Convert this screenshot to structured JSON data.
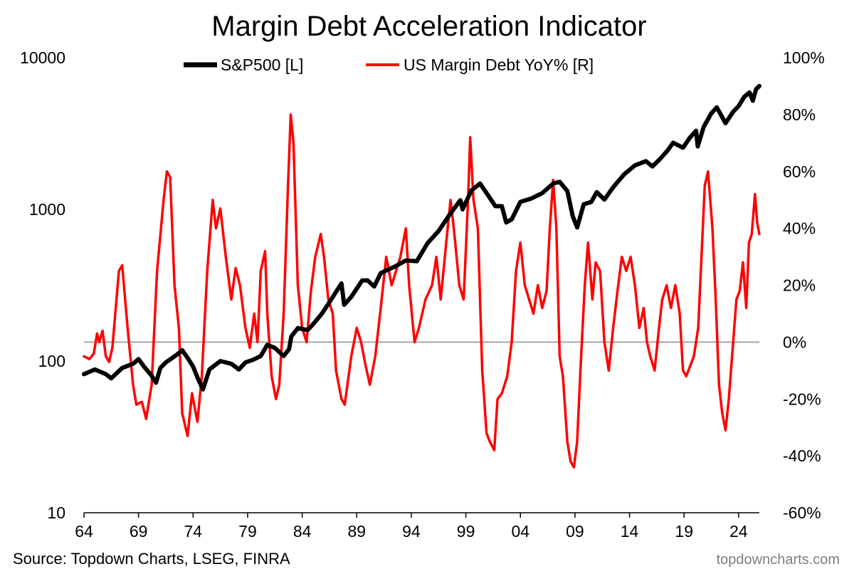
{
  "chart_data": {
    "type": "line",
    "title": "Margin Debt Acceleration Indicator",
    "legend_position": "top-center",
    "grid": false,
    "source": "Source: Topdown Charts, LSEG, FINRA",
    "watermark": "topdowncharts.com",
    "x_range": [
      1964,
      2025.9
    ],
    "x_ticks": [
      {
        "v": 1964,
        "label": "64"
      },
      {
        "v": 1969,
        "label": "69"
      },
      {
        "v": 1974,
        "label": "74"
      },
      {
        "v": 1979,
        "label": "79"
      },
      {
        "v": 1984,
        "label": "84"
      },
      {
        "v": 1989,
        "label": "89"
      },
      {
        "v": 1994,
        "label": "94"
      },
      {
        "v": 1999,
        "label": "99"
      },
      {
        "v": 2004,
        "label": "04"
      },
      {
        "v": 2009,
        "label": "09"
      },
      {
        "v": 2014,
        "label": "14"
      },
      {
        "v": 2019,
        "label": "19"
      },
      {
        "v": 2024,
        "label": "24"
      }
    ],
    "left_axis": {
      "scale": "log",
      "range": [
        10,
        10000
      ],
      "ticks": [
        {
          "v": 10,
          "label": "10"
        },
        {
          "v": 100,
          "label": "100"
        },
        {
          "v": 1000,
          "label": "1000"
        },
        {
          "v": 10000,
          "label": "10000"
        }
      ]
    },
    "right_axis": {
      "scale": "linear",
      "unit": "%",
      "range": [
        -60,
        100
      ],
      "ticks": [
        {
          "v": 100,
          "label": "100%"
        },
        {
          "v": 80,
          "label": "80%"
        },
        {
          "v": 60,
          "label": "60%"
        },
        {
          "v": 40,
          "label": "40%"
        },
        {
          "v": 20,
          "label": "20%"
        },
        {
          "v": 0,
          "label": "0%"
        },
        {
          "v": -20,
          "label": "-20%"
        },
        {
          "v": -40,
          "label": "-40%"
        },
        {
          "v": -60,
          "label": "-60%"
        }
      ]
    },
    "reference_line": {
      "axis": "right",
      "value": 0,
      "color": "#a6a6a6"
    },
    "series": [
      {
        "name": "S&P500 [L]",
        "axis": "left",
        "color": "#000000",
        "points": [
          [
            1964.0,
            82
          ],
          [
            1965.0,
            88
          ],
          [
            1966.0,
            82
          ],
          [
            1966.5,
            77
          ],
          [
            1967.5,
            90
          ],
          [
            1968.5,
            96
          ],
          [
            1969.0,
            103
          ],
          [
            1969.5,
            92
          ],
          [
            1970.2,
            80
          ],
          [
            1970.6,
            72
          ],
          [
            1971.0,
            90
          ],
          [
            1971.5,
            98
          ],
          [
            1972.5,
            110
          ],
          [
            1973.0,
            118
          ],
          [
            1973.5,
            105
          ],
          [
            1974.0,
            92
          ],
          [
            1974.5,
            75
          ],
          [
            1974.9,
            65
          ],
          [
            1975.5,
            88
          ],
          [
            1976.5,
            100
          ],
          [
            1977.5,
            96
          ],
          [
            1978.2,
            88
          ],
          [
            1978.8,
            98
          ],
          [
            1979.5,
            102
          ],
          [
            1980.2,
            108
          ],
          [
            1980.8,
            128
          ],
          [
            1981.5,
            122
          ],
          [
            1982.3,
            108
          ],
          [
            1982.8,
            120
          ],
          [
            1983.0,
            145
          ],
          [
            1983.6,
            165
          ],
          [
            1984.5,
            160
          ],
          [
            1985.0,
            175
          ],
          [
            1985.8,
            205
          ],
          [
            1986.5,
            245
          ],
          [
            1987.6,
            325
          ],
          [
            1987.85,
            235
          ],
          [
            1988.5,
            265
          ],
          [
            1989.5,
            340
          ],
          [
            1990.0,
            340
          ],
          [
            1990.6,
            310
          ],
          [
            1991.2,
            380
          ],
          [
            1992.5,
            420
          ],
          [
            1993.5,
            460
          ],
          [
            1994.5,
            455
          ],
          [
            1995.5,
            600
          ],
          [
            1996.5,
            720
          ],
          [
            1997.5,
            920
          ],
          [
            1998.5,
            1150
          ],
          [
            1998.7,
            1000
          ],
          [
            1999.5,
            1330
          ],
          [
            2000.3,
            1480
          ],
          [
            2001.0,
            1250
          ],
          [
            2001.7,
            1050
          ],
          [
            2002.3,
            1050
          ],
          [
            2002.7,
            820
          ],
          [
            2003.2,
            860
          ],
          [
            2004.0,
            1120
          ],
          [
            2005.0,
            1180
          ],
          [
            2006.0,
            1280
          ],
          [
            2007.0,
            1480
          ],
          [
            2007.6,
            1520
          ],
          [
            2008.3,
            1320
          ],
          [
            2008.8,
            900
          ],
          [
            2009.2,
            760
          ],
          [
            2009.8,
            1080
          ],
          [
            2010.5,
            1120
          ],
          [
            2011.0,
            1300
          ],
          [
            2011.7,
            1160
          ],
          [
            2012.5,
            1400
          ],
          [
            2013.5,
            1700
          ],
          [
            2014.5,
            1950
          ],
          [
            2015.5,
            2080
          ],
          [
            2016.1,
            1920
          ],
          [
            2016.8,
            2150
          ],
          [
            2017.5,
            2450
          ],
          [
            2018.0,
            2750
          ],
          [
            2018.9,
            2550
          ],
          [
            2019.5,
            2950
          ],
          [
            2020.1,
            3300
          ],
          [
            2020.25,
            2600
          ],
          [
            2020.8,
            3500
          ],
          [
            2021.5,
            4300
          ],
          [
            2022.0,
            4700
          ],
          [
            2022.8,
            3700
          ],
          [
            2023.5,
            4400
          ],
          [
            2024.0,
            4800
          ],
          [
            2024.5,
            5500
          ],
          [
            2025.0,
            5900
          ],
          [
            2025.3,
            5200
          ],
          [
            2025.6,
            6200
          ],
          [
            2025.9,
            6500
          ]
        ]
      },
      {
        "name": "US Margin Debt YoY% [R]",
        "axis": "right",
        "color": "#ff0000",
        "points": [
          [
            1964.0,
            -5
          ],
          [
            1964.5,
            -6
          ],
          [
            1964.9,
            -4
          ],
          [
            1965.2,
            3
          ],
          [
            1965.4,
            0
          ],
          [
            1965.7,
            4
          ],
          [
            1966.0,
            -5
          ],
          [
            1966.3,
            -7
          ],
          [
            1966.6,
            -2
          ],
          [
            1967.2,
            25
          ],
          [
            1967.5,
            27
          ],
          [
            1968.0,
            5
          ],
          [
            1968.5,
            -15
          ],
          [
            1968.8,
            -22
          ],
          [
            1969.3,
            -21
          ],
          [
            1969.7,
            -27
          ],
          [
            1970.2,
            -15
          ],
          [
            1970.7,
            25
          ],
          [
            1971.3,
            50
          ],
          [
            1971.6,
            60
          ],
          [
            1971.9,
            58
          ],
          [
            1972.3,
            20
          ],
          [
            1972.7,
            5
          ],
          [
            1973.0,
            -25
          ],
          [
            1973.5,
            -33
          ],
          [
            1973.9,
            -18
          ],
          [
            1974.4,
            -28
          ],
          [
            1974.8,
            -12
          ],
          [
            1975.3,
            25
          ],
          [
            1975.8,
            50
          ],
          [
            1976.1,
            40
          ],
          [
            1976.5,
            47
          ],
          [
            1977.0,
            30
          ],
          [
            1977.5,
            15
          ],
          [
            1977.9,
            26
          ],
          [
            1978.3,
            20
          ],
          [
            1978.8,
            5
          ],
          [
            1979.2,
            -2
          ],
          [
            1979.6,
            10
          ],
          [
            1979.9,
            0
          ],
          [
            1980.2,
            25
          ],
          [
            1980.6,
            32
          ],
          [
            1980.8,
            10
          ],
          [
            1981.2,
            -12
          ],
          [
            1981.6,
            -20
          ],
          [
            1981.9,
            -15
          ],
          [
            1982.3,
            10
          ],
          [
            1982.7,
            55
          ],
          [
            1982.95,
            80
          ],
          [
            1983.2,
            70
          ],
          [
            1983.6,
            20
          ],
          [
            1984.0,
            5
          ],
          [
            1984.4,
            0
          ],
          [
            1984.8,
            18
          ],
          [
            1985.2,
            30
          ],
          [
            1985.7,
            38
          ],
          [
            1986.0,
            30
          ],
          [
            1986.4,
            15
          ],
          [
            1986.8,
            10
          ],
          [
            1987.1,
            -10
          ],
          [
            1987.6,
            -20
          ],
          [
            1987.9,
            -22
          ],
          [
            1988.5,
            -5
          ],
          [
            1989.0,
            5
          ],
          [
            1989.4,
            0
          ],
          [
            1989.8,
            -8
          ],
          [
            1990.2,
            -15
          ],
          [
            1990.7,
            -5
          ],
          [
            1991.2,
            12
          ],
          [
            1991.7,
            30
          ],
          [
            1992.2,
            20
          ],
          [
            1992.6,
            25
          ],
          [
            1993.0,
            30
          ],
          [
            1993.5,
            40
          ],
          [
            1993.8,
            20
          ],
          [
            1994.3,
            0
          ],
          [
            1994.7,
            5
          ],
          [
            1995.3,
            15
          ],
          [
            1995.9,
            20
          ],
          [
            1996.3,
            30
          ],
          [
            1996.7,
            15
          ],
          [
            1997.2,
            35
          ],
          [
            1997.6,
            50
          ],
          [
            1997.9,
            40
          ],
          [
            1998.4,
            20
          ],
          [
            1998.8,
            15
          ],
          [
            1999.2,
            50
          ],
          [
            1999.4,
            72
          ],
          [
            1999.7,
            50
          ],
          [
            2000.1,
            40
          ],
          [
            2000.5,
            -10
          ],
          [
            2000.9,
            -32
          ],
          [
            2001.2,
            -35
          ],
          [
            2001.6,
            -38
          ],
          [
            2001.9,
            -20
          ],
          [
            2002.3,
            -18
          ],
          [
            2002.8,
            -12
          ],
          [
            2003.2,
            0
          ],
          [
            2003.6,
            25
          ],
          [
            2004.0,
            35
          ],
          [
            2004.4,
            20
          ],
          [
            2004.8,
            15
          ],
          [
            2005.2,
            10
          ],
          [
            2005.6,
            20
          ],
          [
            2006.0,
            12
          ],
          [
            2006.4,
            18
          ],
          [
            2006.7,
            40
          ],
          [
            2007.0,
            57
          ],
          [
            2007.3,
            40
          ],
          [
            2007.6,
            -5
          ],
          [
            2007.9,
            -12
          ],
          [
            2008.3,
            -35
          ],
          [
            2008.6,
            -42
          ],
          [
            2008.9,
            -44
          ],
          [
            2009.2,
            -35
          ],
          [
            2009.5,
            -10
          ],
          [
            2009.9,
            20
          ],
          [
            2010.2,
            35
          ],
          [
            2010.6,
            15
          ],
          [
            2010.9,
            28
          ],
          [
            2011.3,
            25
          ],
          [
            2011.7,
            0
          ],
          [
            2012.1,
            -10
          ],
          [
            2012.5,
            5
          ],
          [
            2012.9,
            18
          ],
          [
            2013.3,
            30
          ],
          [
            2013.7,
            25
          ],
          [
            2014.1,
            30
          ],
          [
            2014.5,
            20
          ],
          [
            2014.9,
            5
          ],
          [
            2015.3,
            12
          ],
          [
            2015.6,
            0
          ],
          [
            2015.9,
            -5
          ],
          [
            2016.3,
            -10
          ],
          [
            2016.7,
            5
          ],
          [
            2017.0,
            15
          ],
          [
            2017.4,
            20
          ],
          [
            2017.8,
            12
          ],
          [
            2018.2,
            20
          ],
          [
            2018.6,
            10
          ],
          [
            2018.9,
            -10
          ],
          [
            2019.2,
            -12
          ],
          [
            2019.6,
            -8
          ],
          [
            2019.9,
            -5
          ],
          [
            2020.3,
            5
          ],
          [
            2020.6,
            30
          ],
          [
            2020.9,
            55
          ],
          [
            2021.2,
            60
          ],
          [
            2021.6,
            40
          ],
          [
            2021.9,
            15
          ],
          [
            2022.2,
            -15
          ],
          [
            2022.5,
            -25
          ],
          [
            2022.8,
            -31
          ],
          [
            2023.1,
            -20
          ],
          [
            2023.5,
            0
          ],
          [
            2023.8,
            15
          ],
          [
            2024.1,
            18
          ],
          [
            2024.4,
            28
          ],
          [
            2024.7,
            12
          ],
          [
            2024.95,
            35
          ],
          [
            2025.2,
            38
          ],
          [
            2025.5,
            52
          ],
          [
            2025.7,
            42
          ],
          [
            2025.9,
            38
          ]
        ]
      }
    ]
  }
}
